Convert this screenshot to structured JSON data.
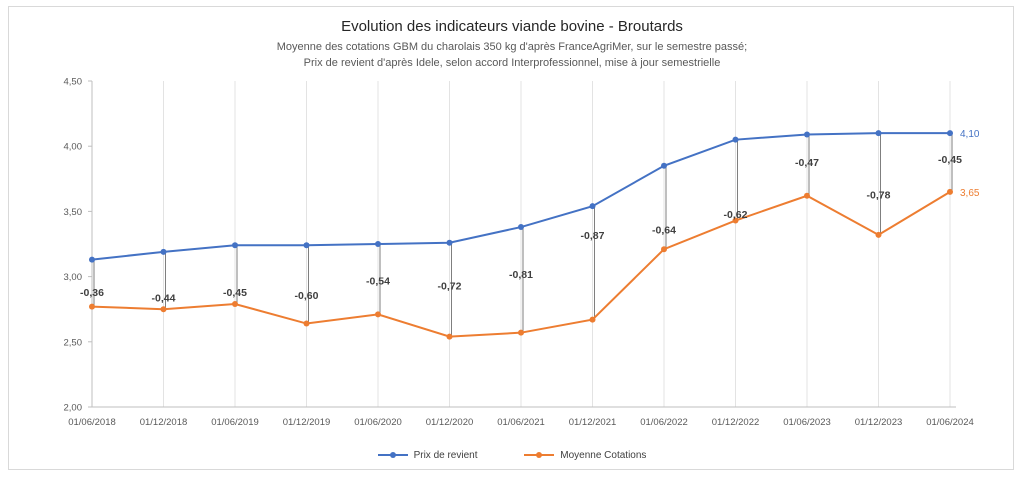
{
  "chart_data": {
    "type": "line",
    "title": "Evolution des indicateurs viande bovine - Broutards",
    "subtitle_lines": [
      "Moyenne des cotations GBM du charolais 350 kg d'après FranceAgriMer, sur le semestre passé;",
      "Prix de revient d'après Idele, selon accord Interprofessionnel, mise à jour semestrielle"
    ],
    "x": [
      "01/06/2018",
      "01/12/2018",
      "01/06/2019",
      "01/12/2019",
      "01/06/2020",
      "01/12/2020",
      "01/06/2021",
      "01/12/2021",
      "01/06/2022",
      "01/12/2022",
      "01/06/2023",
      "01/12/2023",
      "01/06/2024"
    ],
    "y_ticks": [
      "2,00",
      "2,50",
      "3,00",
      "3,50",
      "4,00",
      "4,50"
    ],
    "ylim": [
      2.0,
      4.5
    ],
    "grid": "vertical",
    "legend_position": "bottom",
    "series": [
      {
        "name": "Prix de revient",
        "color": "#4472C4",
        "values": [
          3.13,
          3.19,
          3.24,
          3.24,
          3.25,
          3.26,
          3.38,
          3.54,
          3.85,
          4.05,
          4.09,
          4.1,
          4.1
        ],
        "end_label": "4,10"
      },
      {
        "name": "Moyenne Cotations",
        "color": "#ED7D31",
        "values": [
          2.77,
          2.75,
          2.79,
          2.64,
          2.71,
          2.54,
          2.57,
          2.67,
          3.21,
          3.43,
          3.62,
          3.32,
          3.65
        ],
        "end_label": "3,65"
      }
    ],
    "gap_labels": [
      "-0,36",
      "-0,44",
      "-0,45",
      "-0,60",
      "-0,54",
      "-0,72",
      "-0,81",
      "-0,87",
      "-0,64",
      "-0,62",
      "-0,47",
      "-0,78",
      "-0,45"
    ],
    "gap_label_y": [
      2.88,
      2.84,
      2.88,
      2.86,
      2.97,
      2.93,
      3.02,
      3.32,
      3.36,
      3.48,
      3.88,
      3.63,
      3.9
    ]
  }
}
